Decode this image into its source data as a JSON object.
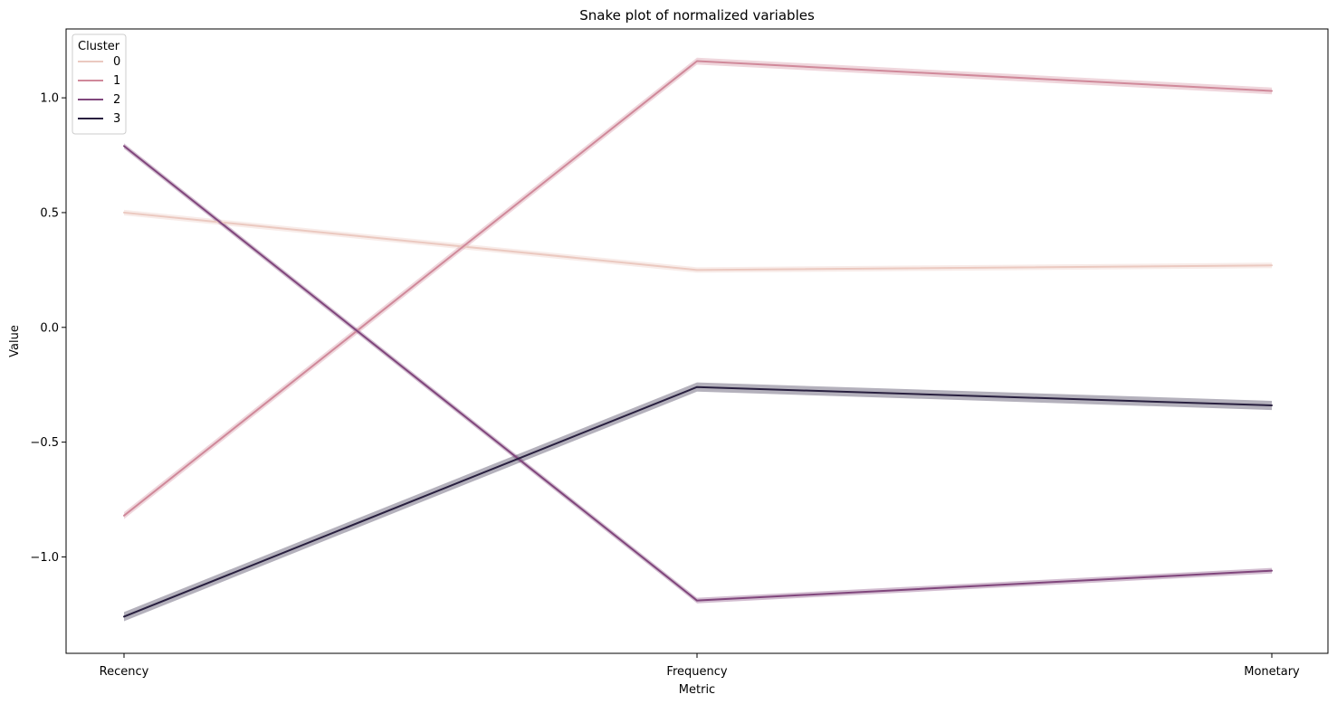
{
  "chart_data": {
    "type": "line",
    "title": "Snake plot of normalized variables",
    "xlabel": "Metric",
    "ylabel": "Value",
    "categories": [
      "Recency",
      "Frequency",
      "Monetary"
    ],
    "ylim": [
      -1.42,
      1.3
    ],
    "yticks": [
      1.0,
      0.5,
      0.0,
      -0.5,
      -1.0
    ],
    "ytick_labels": [
      "1.0",
      "0.5",
      "0.0",
      "−0.5",
      "−1.0"
    ],
    "grid": false,
    "legend": {
      "title": "Cluster",
      "placement": "top-left"
    },
    "series": [
      {
        "name": "0",
        "values": [
          0.5,
          0.25,
          0.27
        ],
        "ci": 0.012,
        "color": "#ebc9c0"
      },
      {
        "name": "1",
        "values": [
          -0.82,
          1.16,
          1.03
        ],
        "ci": 0.015,
        "color": "#d0899a"
      },
      {
        "name": "2",
        "values": [
          0.79,
          -1.19,
          -1.06
        ],
        "ci": 0.012,
        "color": "#80467c"
      },
      {
        "name": "3",
        "values": [
          -1.26,
          -0.26,
          -0.34
        ],
        "ci": 0.02,
        "color": "#281f3f"
      }
    ]
  }
}
